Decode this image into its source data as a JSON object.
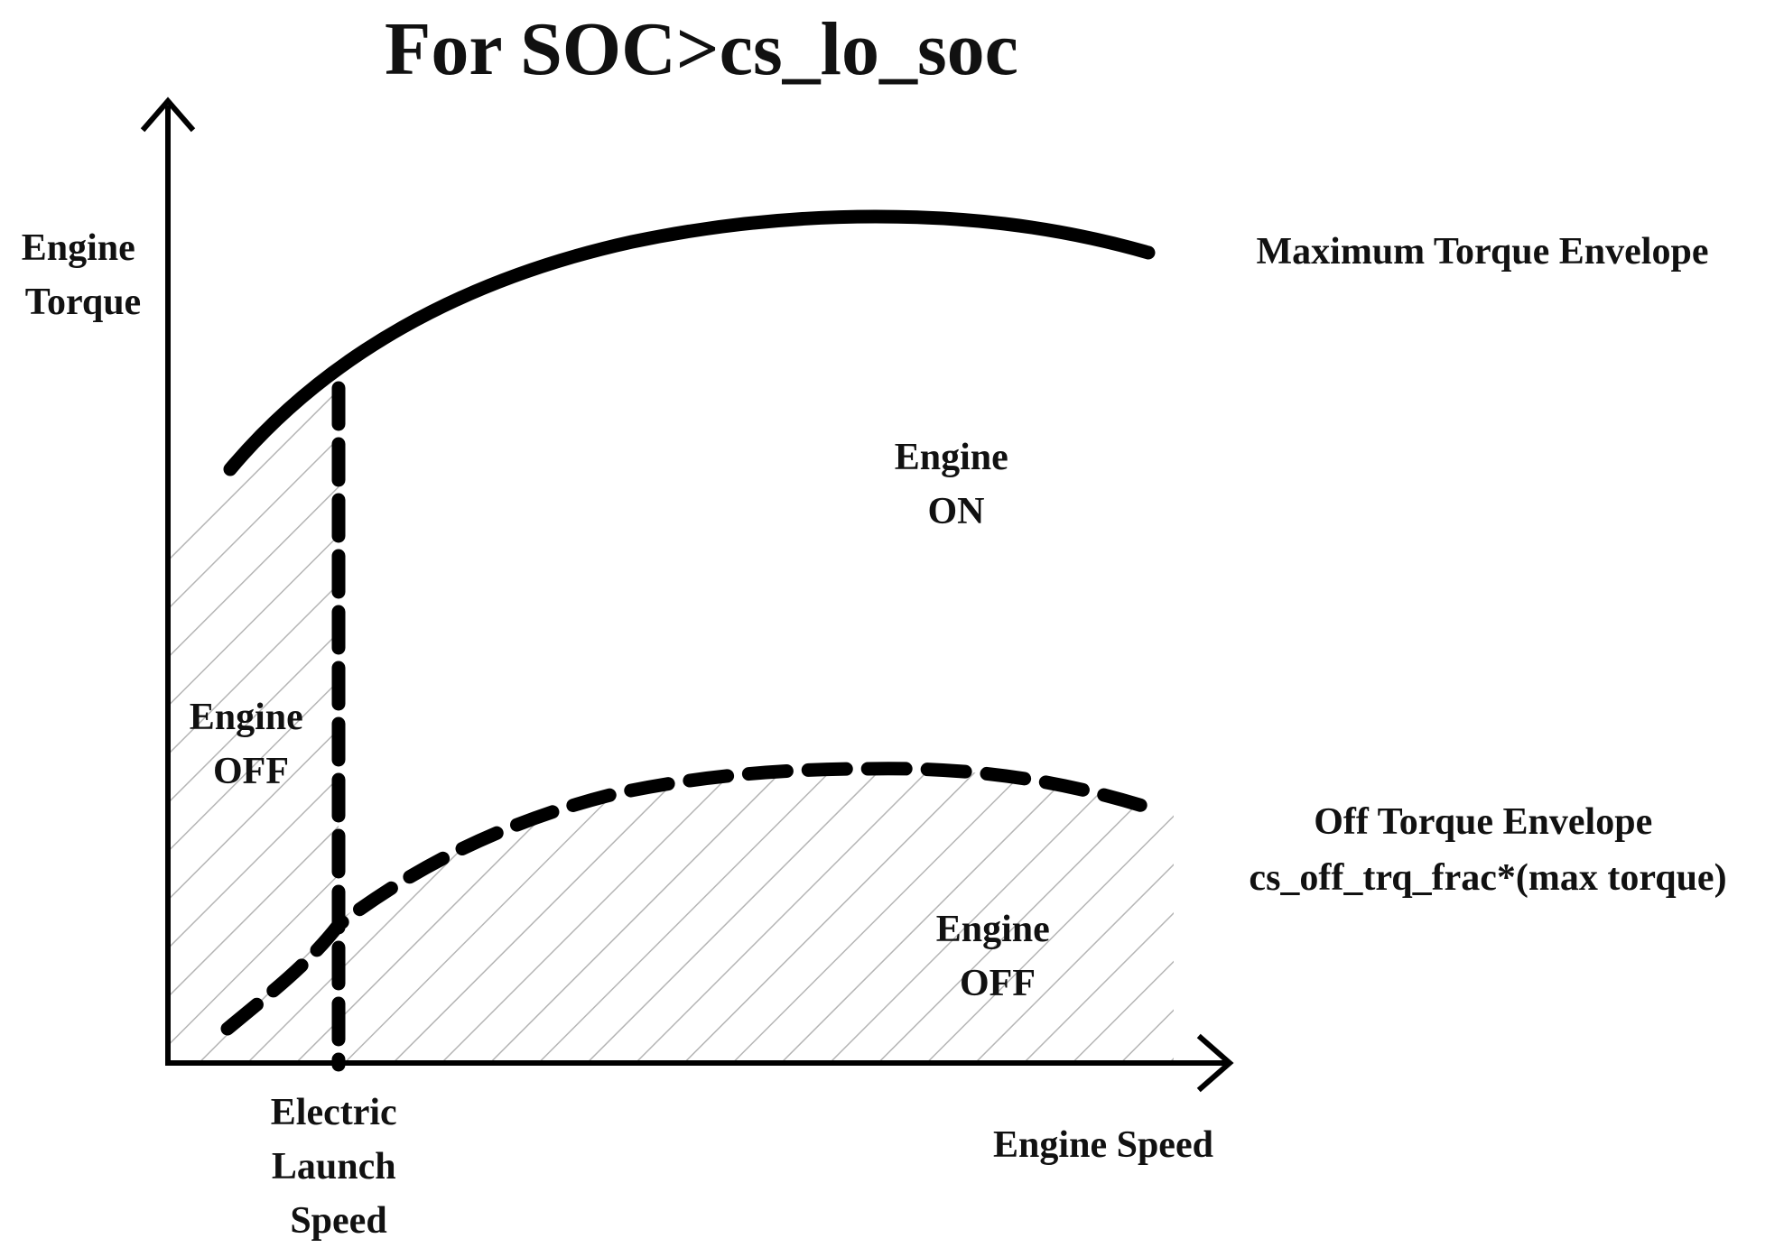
{
  "title": "For SOC>cs_lo_soc",
  "axes": {
    "y_label": [
      "Engine",
      "Torque"
    ],
    "x_label": "Engine Speed"
  },
  "curves": {
    "max_torque_label": "Maximum Torque Envelope",
    "off_torque_label": [
      "Off Torque Envelope",
      "cs_off_trq_frac*(max torque)"
    ],
    "launch_speed_label": [
      "Electric",
      "Launch",
      "Speed"
    ]
  },
  "regions": {
    "engine_on": [
      "Engine",
      "ON"
    ],
    "engine_off_left": [
      "Engine",
      "OFF"
    ],
    "engine_off_bottom": [
      "Engine",
      "OFF"
    ]
  },
  "colors": {
    "ink": "#000000",
    "hatch": "#b5b5b5",
    "text": "#111111"
  }
}
